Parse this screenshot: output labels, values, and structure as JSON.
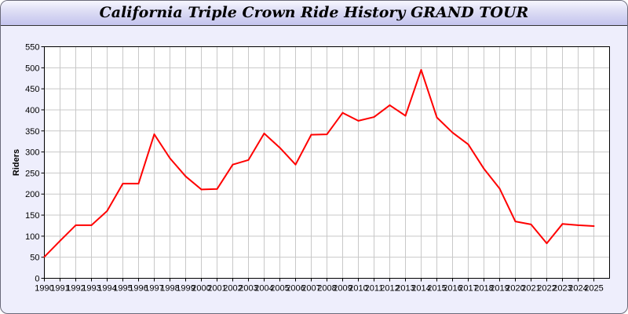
{
  "chart_data": {
    "type": "line",
    "title": "California Triple Crown Ride History GRAND TOUR",
    "xlabel": "",
    "ylabel": "Riders",
    "x": [
      1990,
      1991,
      1992,
      1993,
      1994,
      1995,
      1996,
      1997,
      1998,
      1999,
      2000,
      2001,
      2002,
      2003,
      2004,
      2005,
      2006,
      2007,
      2008,
      2009,
      2010,
      2011,
      2012,
      2013,
      2014,
      2015,
      2016,
      2017,
      2018,
      2019,
      2020,
      2021,
      2022,
      2023,
      2024,
      2025
    ],
    "series": [
      {
        "values": [
          51,
          89,
          126,
          126,
          160,
          225,
          225,
          342,
          285,
          242,
          211,
          212,
          270,
          281,
          344,
          310,
          270,
          341,
          342,
          393,
          374,
          383,
          411,
          386,
          495,
          382,
          346,
          318,
          260,
          213,
          135,
          128,
          83,
          129,
          126,
          124
        ],
        "color": "#ff0000"
      }
    ],
    "xlim": [
      1990,
      2026
    ],
    "ylim": [
      0,
      550
    ],
    "yticks": [
      0,
      50,
      100,
      150,
      200,
      250,
      300,
      350,
      400,
      450,
      500,
      550
    ],
    "grid": true,
    "legend": "none",
    "colors": {
      "background": "#eeeefc",
      "plot": "#ffffff",
      "grid": "#c8c8c8"
    }
  }
}
